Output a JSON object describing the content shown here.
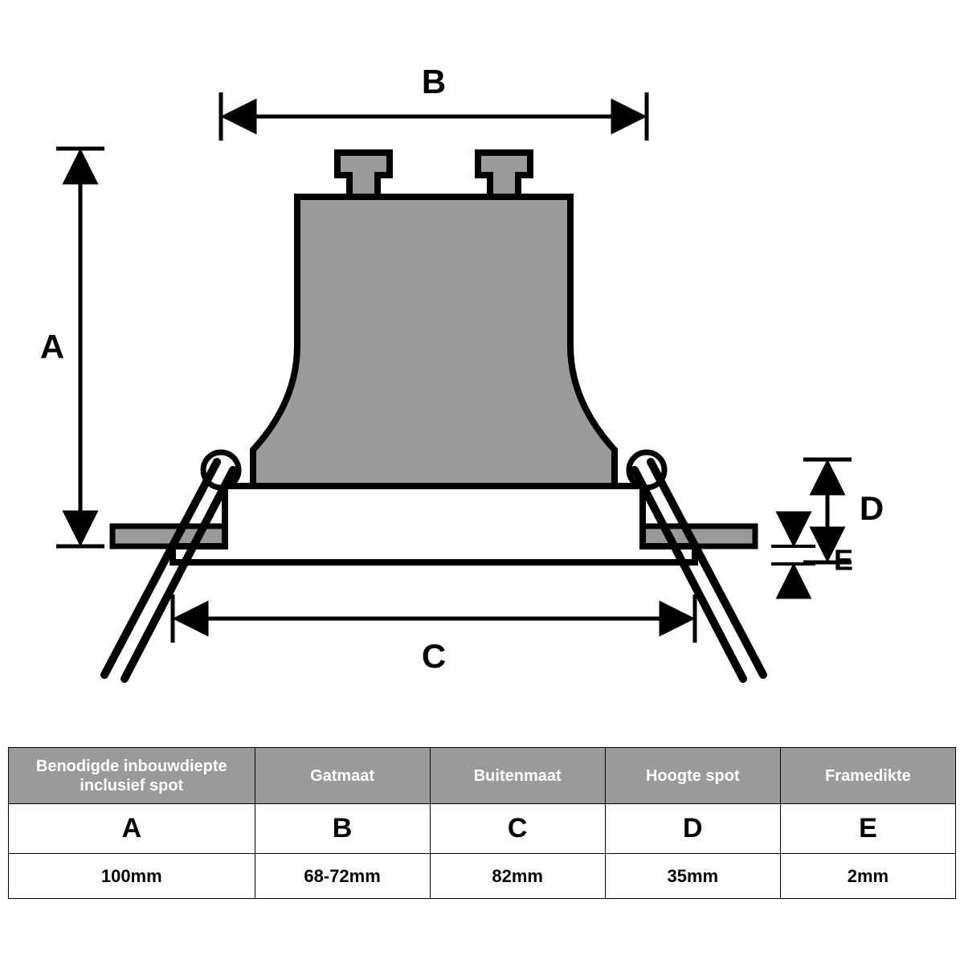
{
  "diagram": {
    "type": "technical-drawing",
    "stroke_color": "#000000",
    "fill_gray": "#9a9a9a",
    "bg": "#ffffff",
    "stroke_main": 7,
    "stroke_thin": 5,
    "labels": {
      "A": "A",
      "B": "B",
      "C": "C",
      "D": "D",
      "E": "E"
    },
    "label_fontsize": 42,
    "label_fontweight": 700
  },
  "table": {
    "header_bg": "#9a9a9a",
    "header_color": "#ffffff",
    "border_color": "#000000",
    "columns": [
      {
        "header": "Benodigde inbouwdiepte inclusief spot",
        "letter": "A",
        "value": "100mm",
        "width": "26%"
      },
      {
        "header": "Gatmaat",
        "letter": "B",
        "value": "68-72mm",
        "width": "18.5%"
      },
      {
        "header": "Buitenmaat",
        "letter": "C",
        "value": "82mm",
        "width": "18.5%"
      },
      {
        "header": "Hoogte spot",
        "letter": "D",
        "value": "35mm",
        "width": "18.5%"
      },
      {
        "header": "Framedikte",
        "letter": "E",
        "value": "2mm",
        "width": "18.5%"
      }
    ]
  }
}
